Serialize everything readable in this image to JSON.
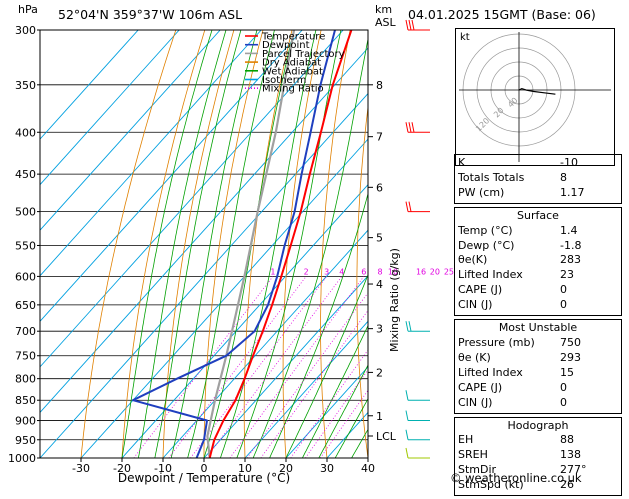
{
  "header": {
    "left_unit": "hPa",
    "location": "52°04'N  359°37'W  106m  ASL",
    "km_label": "km",
    "asl_label": "ASL",
    "date": "04.01.2025  15GMT  (Base: 06)"
  },
  "chart_data": {
    "type": "skew-t",
    "title": "52°04'N 359°37'W 106m ASL",
    "xlabel": "Dewpoint / Temperature (°C)",
    "ylabel": "hPa",
    "right_ylabel": "Mixing Ratio (g/kg)",
    "xlim": [
      -40,
      40
    ],
    "ylim": [
      1000,
      300
    ],
    "x_ticks": [
      -30,
      -20,
      -10,
      0,
      10,
      20,
      30,
      40
    ],
    "pressure_ticks": [
      300,
      350,
      400,
      450,
      500,
      550,
      600,
      650,
      700,
      750,
      800,
      850,
      900,
      950,
      1000
    ],
    "km_ticks": [
      {
        "label": "8",
        "p": 350
      },
      {
        "label": "7",
        "p": 405
      },
      {
        "label": "6",
        "p": 467
      },
      {
        "label": "5",
        "p": 538
      },
      {
        "label": "4",
        "p": 613
      },
      {
        "label": "3",
        "p": 695
      },
      {
        "label": "2",
        "p": 786
      },
      {
        "label": "1",
        "p": 888
      },
      {
        "label": "LCL",
        "p": 940
      }
    ],
    "mixing_ratio_labels": [
      "1",
      "2",
      "3",
      "4",
      "6",
      "8",
      "10",
      "16",
      "20",
      "25"
    ],
    "mixing_ratio_values": [
      1,
      2,
      3,
      4,
      6,
      8,
      10,
      16,
      20,
      25
    ],
    "legend": [
      "Temperature",
      "Dewpoint",
      "Parcel Trajectory",
      "Dry Adiabat",
      "Wet Adiabat",
      "Isotherm",
      "Mixing Ratio"
    ],
    "legend_colors": [
      "#ff0000",
      "#1f3fbf",
      "#a0a0a0",
      "#e08000",
      "#00a000",
      "#00a0e0",
      "#e000e0"
    ],
    "temperature": [
      {
        "p": 1000,
        "t": 1.4
      },
      {
        "p": 950,
        "t": -1.5
      },
      {
        "p": 900,
        "t": -3.5
      },
      {
        "p": 850,
        "t": -5
      },
      {
        "p": 800,
        "t": -7.5
      },
      {
        "p": 750,
        "t": -10.5
      },
      {
        "p": 700,
        "t": -13.5
      },
      {
        "p": 650,
        "t": -17
      },
      {
        "p": 600,
        "t": -21
      },
      {
        "p": 550,
        "t": -25.5
      },
      {
        "p": 500,
        "t": -30.5
      },
      {
        "p": 450,
        "t": -36.5
      },
      {
        "p": 400,
        "t": -43
      },
      {
        "p": 350,
        "t": -50.5
      },
      {
        "p": 300,
        "t": -58
      }
    ],
    "dewpoint": [
      {
        "p": 1000,
        "t": -1.8
      },
      {
        "p": 950,
        "t": -4
      },
      {
        "p": 900,
        "t": -7.5
      },
      {
        "p": 850,
        "t": -30
      },
      {
        "p": 800,
        "t": -24
      },
      {
        "p": 750,
        "t": -17
      },
      {
        "p": 700,
        "t": -15.5
      },
      {
        "p": 650,
        "t": -18
      },
      {
        "p": 600,
        "t": -22
      },
      {
        "p": 550,
        "t": -27
      },
      {
        "p": 500,
        "t": -32
      },
      {
        "p": 450,
        "t": -38.5
      },
      {
        "p": 400,
        "t": -45.5
      },
      {
        "p": 350,
        "t": -53.5
      },
      {
        "p": 300,
        "t": -62
      }
    ],
    "parcel": [
      {
        "p": 1000,
        "t": 1.4
      },
      {
        "p": 940,
        "t": -4
      },
      {
        "p": 850,
        "t": -10
      },
      {
        "p": 750,
        "t": -17
      },
      {
        "p": 700,
        "t": -21
      },
      {
        "p": 600,
        "t": -30
      },
      {
        "p": 500,
        "t": -41
      },
      {
        "p": 400,
        "t": -54
      },
      {
        "p": 300,
        "t": -72
      }
    ]
  },
  "hodograph": {
    "label": "kt",
    "ring_labels": [
      "20",
      "40"
    ],
    "ring_label_prefix": "120",
    "points": [
      {
        "u": 0,
        "v": 0
      },
      {
        "u": 2,
        "v": 1
      },
      {
        "u": 5,
        "v": 0
      },
      {
        "u": 10,
        "v": -1
      },
      {
        "u": 18,
        "v": -2
      },
      {
        "u": 26,
        "v": -3
      }
    ]
  },
  "indices": {
    "rows": [
      {
        "label": "K",
        "value": "-10"
      },
      {
        "label": "Totals Totals",
        "value": "8"
      },
      {
        "label": "PW (cm)",
        "value": "1.17"
      }
    ]
  },
  "surface": {
    "title": "Surface",
    "rows": [
      {
        "label": "Temp (°C)",
        "value": "1.4"
      },
      {
        "label": "Dewp (°C)",
        "value": "-1.8"
      },
      {
        "label": "θe(K)",
        "value": "283"
      },
      {
        "label": "Lifted Index",
        "value": "23"
      },
      {
        "label": "CAPE (J)",
        "value": "0"
      },
      {
        "label": "CIN (J)",
        "value": "0"
      }
    ]
  },
  "most_unstable": {
    "title": "Most Unstable",
    "rows": [
      {
        "label": "Pressure (mb)",
        "value": "750"
      },
      {
        "label": "θe (K)",
        "value": "293"
      },
      {
        "label": "Lifted Index",
        "value": "15"
      },
      {
        "label": "CAPE (J)",
        "value": "0"
      },
      {
        "label": "CIN (J)",
        "value": "0"
      }
    ]
  },
  "hodograph_table": {
    "title": "Hodograph",
    "rows": [
      {
        "label": "EH",
        "value": "88"
      },
      {
        "label": "SREH",
        "value": "138"
      },
      {
        "label": "StmDir",
        "value": "277°"
      },
      {
        "label": "StmSpd (kt)",
        "value": "26"
      }
    ]
  },
  "footer": {
    "copyright": "© weatheronline.co.uk"
  },
  "colors": {
    "temperature": "#ff0000",
    "dewpoint": "#1f3fbf",
    "parcel": "#a0a0a0",
    "dry_adiabat": "#e08000",
    "wet_adiabat": "#00a000",
    "isotherm": "#00a0e0",
    "mixing_ratio": "#e000e0",
    "wind_barb_high": "#ff0000",
    "wind_barb_low": "#00b0b0",
    "wind_barb_sfc": "#a0c800"
  }
}
